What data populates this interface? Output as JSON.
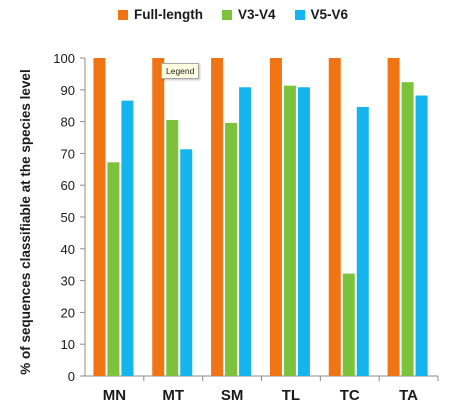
{
  "chart_data": {
    "type": "bar",
    "title": "",
    "xlabel": "",
    "ylabel": "% of sequences classifiable at the species level",
    "categories": [
      "MN",
      "MT",
      "SM",
      "TL",
      "TC",
      "TA"
    ],
    "series": [
      {
        "name": "Full-length",
        "color": "#f07414",
        "values": [
          100,
          100,
          100,
          100,
          100,
          100
        ]
      },
      {
        "name": "V3-V4",
        "color": "#7cc23c",
        "values": [
          67.2,
          80.5,
          79.6,
          91.3,
          32.2,
          92.4
        ]
      },
      {
        "name": "V5-V6",
        "color": "#14b5ef",
        "values": [
          86.6,
          71.3,
          90.8,
          90.8,
          84.6,
          88.2
        ]
      }
    ],
    "ylim": [
      0,
      100
    ],
    "yticks": [
      0,
      10,
      20,
      30,
      40,
      50,
      60,
      70,
      80,
      90,
      100
    ],
    "grid": false,
    "legend_position": "top"
  },
  "tooltip": {
    "text": "Legend"
  }
}
